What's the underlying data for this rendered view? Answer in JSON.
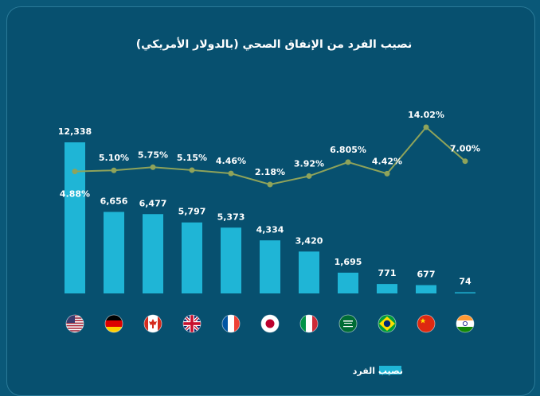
{
  "colors": {
    "background": "#07506f",
    "bar": "#1fb5d6",
    "line": "#8fa35a",
    "text": "#ffffff"
  },
  "chart_data": {
    "type": "bar",
    "title": "نصيب الفرد من الإنفاق الصحي (بالدولار الأمريكي)",
    "categories": [
      "us-flag",
      "germany-flag",
      "canada-flag",
      "uk-flag",
      "france-flag",
      "japan-flag",
      "italy-flag",
      "saudi-arabia-flag",
      "brazil-flag",
      "china-flag",
      "india-flag"
    ],
    "series": [
      {
        "name": "نصيب الفرد",
        "type": "bar",
        "values": [
          12338,
          6656,
          6477,
          5797,
          5373,
          4334,
          3420,
          1695,
          771,
          677,
          74
        ],
        "labels": [
          "12,338",
          "6,656",
          "6,477",
          "5,797",
          "5,373",
          "4,334",
          "3,420",
          "1,695",
          "771",
          "677",
          "74"
        ]
      },
      {
        "type": "line",
        "values": [
          4.88,
          5.1,
          5.75,
          5.15,
          4.46,
          2.18,
          3.92,
          6.805,
          4.42,
          14.02,
          7.0
        ],
        "labels": [
          "4.88%",
          "5.10%",
          "5.75%",
          "5.15%",
          "4.46%",
          "2.18%",
          "3.92%",
          "6.805%",
          "4.42%",
          "14.02%",
          "7.00%"
        ]
      }
    ],
    "legend": {
      "position": "bottom-right",
      "label": "نصيب الفرد"
    },
    "grid": false
  }
}
